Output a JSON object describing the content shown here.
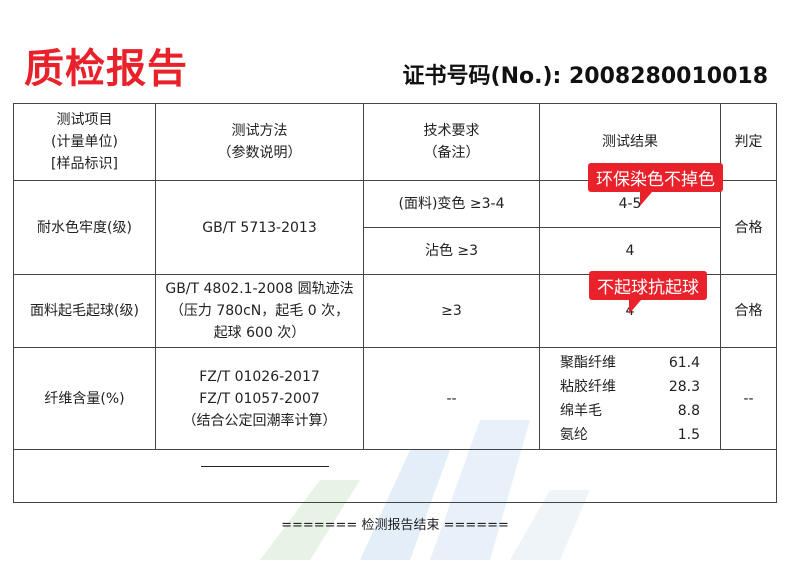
{
  "header": {
    "title": "质检报告",
    "cert_no": "证书号码(No.): 2008280010018"
  },
  "table": {
    "headers": [
      [
        "测试项目",
        "(计量单位)",
        "[样品标识]"
      ],
      [
        "测试方法",
        "（参数说明）"
      ],
      [
        "技术要求",
        "（备注）"
      ],
      [
        "测试结果"
      ],
      [
        "判定"
      ]
    ],
    "rows": {
      "water": {
        "item": "耐水色牢度(级)",
        "method": "GB/T 5713-2013",
        "req1": "(面料)变色 ≥3-4",
        "res1": "4-5",
        "req2": "沾色 ≥3",
        "res2": "4",
        "verdict": "合格"
      },
      "pilling": {
        "item": "面料起毛起球(级)",
        "method": [
          "GB/T 4802.1-2008 圆轨迹法",
          "（压力 780cN，起毛 0 次，",
          "起球 600 次）"
        ],
        "req": "≥3",
        "res": "4",
        "verdict": "合格"
      },
      "fiber": {
        "item": "纤维含量(%)",
        "method": [
          "FZ/T 01026-2017",
          "FZ/T 01057-2007",
          "（结合公定回潮率计算）"
        ],
        "req": "--",
        "results": [
          {
            "name": "聚酯纤维",
            "value": "61.4"
          },
          {
            "name": "粘胶纤维",
            "value": "28.3"
          },
          {
            "name": "绵羊毛",
            "value": "8.8"
          },
          {
            "name": "氨纶",
            "value": "1.5"
          }
        ],
        "verdict": "--"
      }
    }
  },
  "annotations": {
    "bubble1": "环保染色不掉色",
    "bubble2": "不起球抗起球"
  },
  "footer": "======= 检测报告结束 ======"
}
